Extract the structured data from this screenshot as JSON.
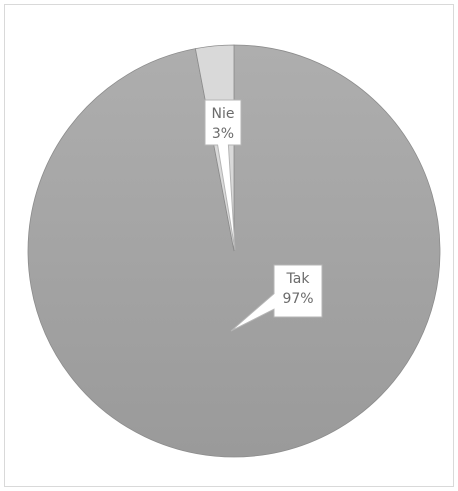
{
  "chart_data": {
    "type": "pie",
    "labels": [
      "Tak",
      "Nie"
    ],
    "values": [
      97,
      3
    ],
    "data_labels": [
      "97%",
      "3%"
    ],
    "colors": [
      "#a6a6a6",
      "#d9d9d9"
    ],
    "title": "",
    "legend": "none"
  }
}
